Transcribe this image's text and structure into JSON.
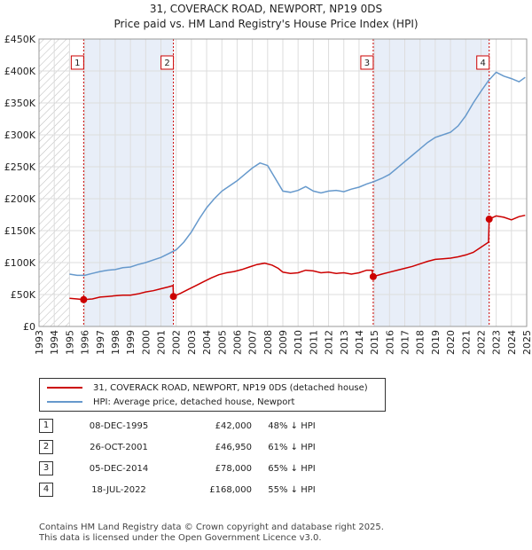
{
  "title_line1": "31, COVERACK ROAD, NEWPORT, NP19 0DS",
  "title_line2": "Price paid vs. HM Land Registry's House Price Index (HPI)",
  "colors": {
    "property": "#cc0000",
    "hpi": "#6699cc",
    "band": "#e8eef8",
    "grid": "#dddddd"
  },
  "chart_data": {
    "type": "line",
    "title": "31, COVERACK ROAD, NEWPORT, NP19 0DS — Price paid vs. HM Land Registry's House Price Index (HPI)",
    "xlabel": "",
    "ylabel": "",
    "xlim": [
      1993,
      2025
    ],
    "ylim": [
      0,
      450000
    ],
    "x_ticks": [
      "1993",
      "1994",
      "1995",
      "1996",
      "1997",
      "1998",
      "1999",
      "2000",
      "2001",
      "2002",
      "2003",
      "2004",
      "2005",
      "2006",
      "2007",
      "2008",
      "2009",
      "2010",
      "2011",
      "2012",
      "2013",
      "2014",
      "2015",
      "2016",
      "2017",
      "2018",
      "2019",
      "2020",
      "2021",
      "2022",
      "2023",
      "2024",
      "2025"
    ],
    "y_ticks": [
      {
        "value": 0,
        "label": "£0"
      },
      {
        "value": 50000,
        "label": "£50K"
      },
      {
        "value": 100000,
        "label": "£100K"
      },
      {
        "value": 150000,
        "label": "£150K"
      },
      {
        "value": 200000,
        "label": "£200K"
      },
      {
        "value": 250000,
        "label": "£250K"
      },
      {
        "value": 300000,
        "label": "£300K"
      },
      {
        "value": 350000,
        "label": "£350K"
      },
      {
        "value": 400000,
        "label": "£400K"
      },
      {
        "value": 450000,
        "label": "£450K"
      }
    ],
    "series": [
      {
        "name": "31, COVERACK ROAD, NEWPORT, NP19 0DS (detached house)",
        "points": [
          [
            1995.0,
            44000
          ],
          [
            1995.5,
            43000
          ],
          [
            1995.93,
            42000
          ],
          [
            1996.5,
            43000
          ],
          [
            1997.0,
            46000
          ],
          [
            1997.5,
            47000
          ],
          [
            1998.0,
            48000
          ],
          [
            1998.5,
            49000
          ],
          [
            1999.0,
            49000
          ],
          [
            1999.5,
            51000
          ],
          [
            2000.0,
            54000
          ],
          [
            2000.5,
            56000
          ],
          [
            2001.0,
            59000
          ],
          [
            2001.5,
            62000
          ],
          [
            2001.8,
            64000
          ],
          [
            2001.82,
            46950
          ],
          [
            2002.3,
            52000
          ],
          [
            2002.8,
            58000
          ],
          [
            2003.3,
            64000
          ],
          [
            2003.8,
            70000
          ],
          [
            2004.3,
            76000
          ],
          [
            2004.8,
            81000
          ],
          [
            2005.3,
            84000
          ],
          [
            2005.8,
            86000
          ],
          [
            2006.3,
            89000
          ],
          [
            2006.8,
            93000
          ],
          [
            2007.3,
            97000
          ],
          [
            2007.8,
            99000
          ],
          [
            2008.3,
            96000
          ],
          [
            2008.7,
            91000
          ],
          [
            2009.0,
            85000
          ],
          [
            2009.5,
            83000
          ],
          [
            2010.0,
            84000
          ],
          [
            2010.5,
            88000
          ],
          [
            2011.0,
            87000
          ],
          [
            2011.5,
            84000
          ],
          [
            2012.0,
            85000
          ],
          [
            2012.5,
            83000
          ],
          [
            2013.0,
            84000
          ],
          [
            2013.5,
            82000
          ],
          [
            2014.0,
            84000
          ],
          [
            2014.5,
            88000
          ],
          [
            2014.85,
            88000
          ],
          [
            2014.93,
            78000
          ],
          [
            2015.5,
            82000
          ],
          [
            2016.0,
            85000
          ],
          [
            2016.5,
            88000
          ],
          [
            2017.0,
            91000
          ],
          [
            2017.5,
            94000
          ],
          [
            2018.0,
            98000
          ],
          [
            2018.5,
            102000
          ],
          [
            2019.0,
            105000
          ],
          [
            2019.5,
            106000
          ],
          [
            2020.0,
            107000
          ],
          [
            2020.5,
            109000
          ],
          [
            2021.0,
            112000
          ],
          [
            2021.5,
            116000
          ],
          [
            2022.0,
            124000
          ],
          [
            2022.5,
            132000
          ],
          [
            2022.54,
            168000
          ],
          [
            2023.0,
            173000
          ],
          [
            2023.5,
            171000
          ],
          [
            2024.0,
            167000
          ],
          [
            2024.5,
            172000
          ],
          [
            2024.9,
            174000
          ]
        ]
      },
      {
        "name": "HPI: Average price, detached house, Newport",
        "points": [
          [
            1995.0,
            82000
          ],
          [
            1995.5,
            80000
          ],
          [
            1996.0,
            80000
          ],
          [
            1996.5,
            83000
          ],
          [
            1997.0,
            86000
          ],
          [
            1997.5,
            88000
          ],
          [
            1998.0,
            89000
          ],
          [
            1998.5,
            92000
          ],
          [
            1999.0,
            93000
          ],
          [
            1999.5,
            97000
          ],
          [
            2000.0,
            100000
          ],
          [
            2000.5,
            104000
          ],
          [
            2001.0,
            108000
          ],
          [
            2001.5,
            114000
          ],
          [
            2002.0,
            120000
          ],
          [
            2002.5,
            132000
          ],
          [
            2003.0,
            148000
          ],
          [
            2003.5,
            168000
          ],
          [
            2004.0,
            186000
          ],
          [
            2004.5,
            200000
          ],
          [
            2005.0,
            212000
          ],
          [
            2005.5,
            220000
          ],
          [
            2006.0,
            228000
          ],
          [
            2006.5,
            238000
          ],
          [
            2007.0,
            248000
          ],
          [
            2007.5,
            256000
          ],
          [
            2008.0,
            252000
          ],
          [
            2008.5,
            232000
          ],
          [
            2009.0,
            212000
          ],
          [
            2009.5,
            210000
          ],
          [
            2010.0,
            213000
          ],
          [
            2010.5,
            219000
          ],
          [
            2011.0,
            212000
          ],
          [
            2011.5,
            209000
          ],
          [
            2012.0,
            212000
          ],
          [
            2012.5,
            213000
          ],
          [
            2013.0,
            211000
          ],
          [
            2013.5,
            215000
          ],
          [
            2014.0,
            218000
          ],
          [
            2014.5,
            223000
          ],
          [
            2015.0,
            227000
          ],
          [
            2015.5,
            232000
          ],
          [
            2016.0,
            238000
          ],
          [
            2016.5,
            248000
          ],
          [
            2017.0,
            258000
          ],
          [
            2017.5,
            268000
          ],
          [
            2018.0,
            278000
          ],
          [
            2018.5,
            288000
          ],
          [
            2019.0,
            296000
          ],
          [
            2019.5,
            300000
          ],
          [
            2020.0,
            304000
          ],
          [
            2020.5,
            314000
          ],
          [
            2021.0,
            330000
          ],
          [
            2021.5,
            350000
          ],
          [
            2022.0,
            368000
          ],
          [
            2022.5,
            385000
          ],
          [
            2023.0,
            398000
          ],
          [
            2023.5,
            392000
          ],
          [
            2024.0,
            388000
          ],
          [
            2024.5,
            383000
          ],
          [
            2024.9,
            390000
          ]
        ]
      }
    ],
    "sales": [
      {
        "num": "1",
        "date": "08-DEC-1995",
        "price": "£42,000",
        "hpi": "48% ↓ HPI",
        "x": 1995.93,
        "y": 42000
      },
      {
        "num": "2",
        "date": "26-OCT-2001",
        "price": "£46,950",
        "hpi": "61% ↓ HPI",
        "x": 2001.82,
        "y": 46950
      },
      {
        "num": "3",
        "date": "05-DEC-2014",
        "price": "£78,000",
        "hpi": "65% ↓ HPI",
        "x": 2014.93,
        "y": 78000
      },
      {
        "num": "4",
        "date": "18-JUL-2022",
        "price": "£168,000",
        "hpi": "55% ↓ HPI",
        "x": 2022.54,
        "y": 168000
      }
    ]
  },
  "legend": {
    "property_label": "31, COVERACK ROAD, NEWPORT, NP19 0DS (detached house)",
    "hpi_label": "HPI: Average price, detached house, Newport"
  },
  "footer": {
    "line1": "Contains HM Land Registry data © Crown copyright and database right 2025.",
    "line2": "This data is licensed under the Open Government Licence v3.0."
  }
}
